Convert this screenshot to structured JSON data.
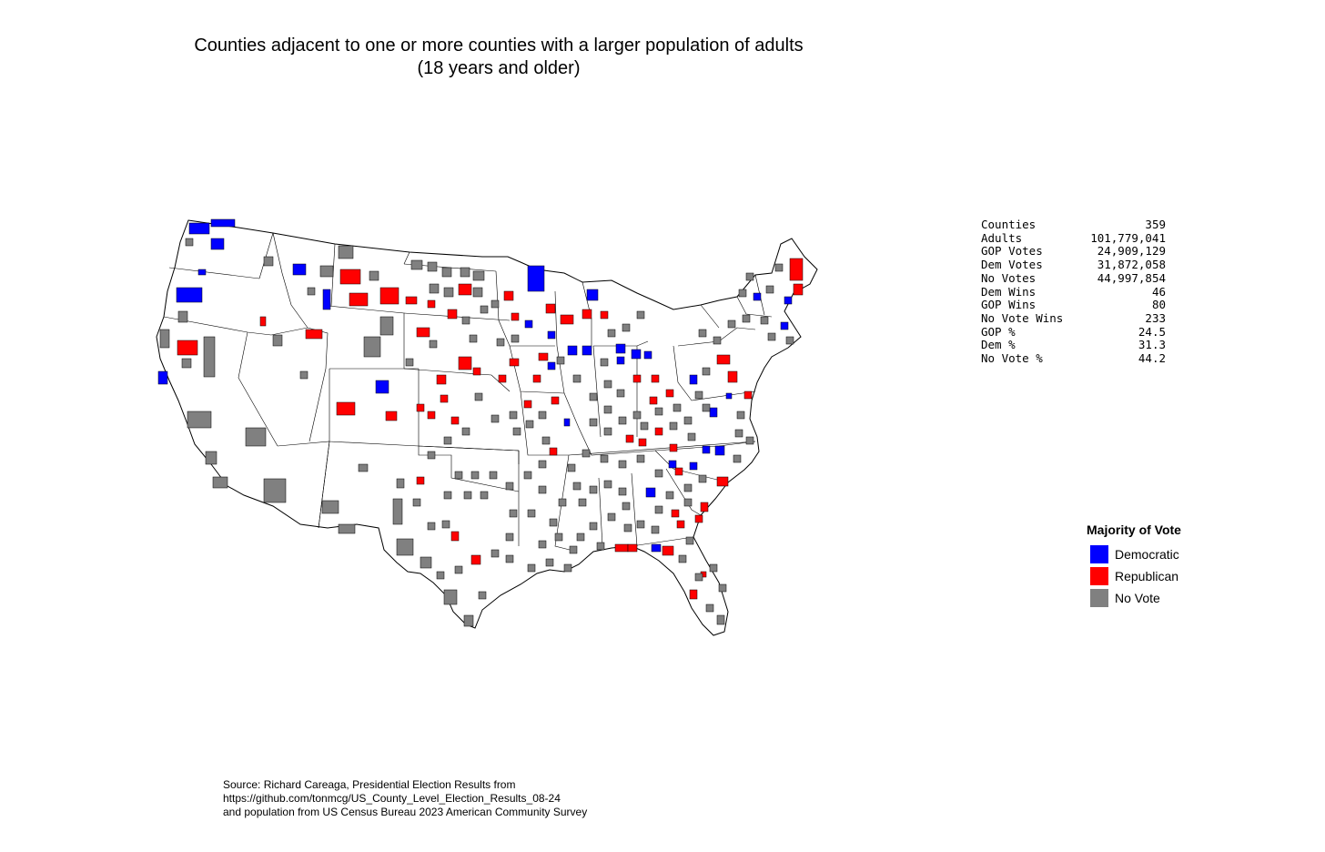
{
  "title": {
    "line1": "Counties adjacent to one or more counties with a larger population of adults",
    "line2": "(18 years and older)"
  },
  "stats": [
    {
      "label": "Counties",
      "value": "359"
    },
    {
      "label": "Adults",
      "value": "101,779,041"
    },
    {
      "label": "GOP Votes",
      "value": "24,909,129"
    },
    {
      "label": "Dem Votes",
      "value": "31,872,058"
    },
    {
      "label": "No Votes",
      "value": "44,997,854"
    },
    {
      "label": "Dem Wins",
      "value": "46"
    },
    {
      "label": "GOP Wins",
      "value": "80"
    },
    {
      "label": "No Vote Wins",
      "value": "233"
    },
    {
      "label": "GOP %",
      "value": "24.5"
    },
    {
      "label": "Dem %",
      "value": "31.3"
    },
    {
      "label": "No Vote %",
      "value": "44.2"
    }
  ],
  "legend": {
    "title": "Majority of Vote",
    "items": [
      {
        "label": "Democratic",
        "color": "#0000ff"
      },
      {
        "label": "Republican",
        "color": "#ff0000"
      },
      {
        "label": "No Vote",
        "color": "#808080"
      }
    ]
  },
  "source": {
    "line1": "Source: Richard Careaga, Presidential Election Results from",
    "line2": "https://github.com/tonmcg/US_County_Level_Election_Results_08-24",
    "line3": "and population from US Census Bureau 2023 American Community Survey"
  },
  "map": {
    "colors": {
      "dem": "#0000ff",
      "gop": "#ff0000",
      "none": "#808080",
      "outline": "#000000",
      "fill": "#ffffff"
    }
  }
}
